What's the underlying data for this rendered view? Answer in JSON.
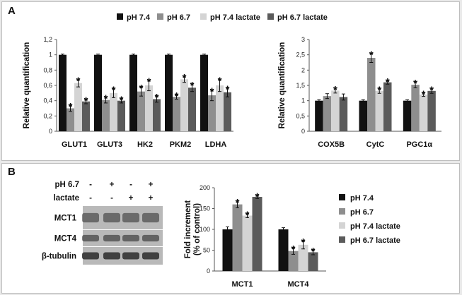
{
  "panel_labels": {
    "a": "A",
    "b": "B"
  },
  "colors": {
    "pH 7.4": "#111111",
    "pH 6.7": "#8e8e8e",
    "pH 7.4 lactate": "#d4d4d4",
    "pH 6.7 lactate": "#5b5b5b"
  },
  "legend_a": [
    "pH 7.4",
    "pH 6.7",
    "pH 7.4 lactate",
    "pH 6.7 lactate"
  ],
  "legend_b": [
    "pH 7.4",
    "pH 6.7",
    "pH 7.4 lactate",
    "pH 6.7 lactate"
  ],
  "blot": {
    "condition_rows": [
      {
        "label": "pH 6.7",
        "marks": [
          "-",
          "+",
          "-",
          "+"
        ]
      },
      {
        "label": "lactate",
        "marks": [
          "-",
          "-",
          "+",
          "+"
        ]
      }
    ],
    "protein_labels": [
      "MCT1",
      "MCT4",
      "β-tubulin"
    ]
  },
  "chart_data": [
    {
      "type": "bar",
      "ylabel": "Relative quantification",
      "ylim": [
        0,
        1.2
      ],
      "yticks": [
        "0",
        "0,2",
        "0,4",
        "0,6",
        "0,8",
        "1",
        "1,2"
      ],
      "categories": [
        "GLUT1",
        "GLUT3",
        "HK2",
        "PKM2",
        "LDHA"
      ],
      "series": [
        {
          "name": "pH 7.4",
          "values": [
            1.0,
            1.0,
            1.0,
            1.0,
            1.0
          ],
          "errors": [
            0.01,
            0.01,
            0.01,
            0.01,
            0.01
          ],
          "sig": [
            false,
            false,
            false,
            false,
            false
          ]
        },
        {
          "name": "pH 6.7",
          "values": [
            0.3,
            0.41,
            0.52,
            0.45,
            0.47
          ],
          "errors": [
            0.04,
            0.04,
            0.06,
            0.03,
            0.07
          ],
          "sig": [
            true,
            true,
            true,
            true,
            true
          ]
        },
        {
          "name": "pH 7.4 lactate",
          "values": [
            0.63,
            0.5,
            0.6,
            0.68,
            0.6
          ],
          "errors": [
            0.05,
            0.06,
            0.07,
            0.04,
            0.08
          ],
          "sig": [
            true,
            true,
            true,
            true,
            true
          ]
        },
        {
          "name": "pH 6.7 lactate",
          "values": [
            0.39,
            0.4,
            0.42,
            0.57,
            0.51
          ],
          "errors": [
            0.03,
            0.03,
            0.04,
            0.05,
            0.06
          ],
          "sig": [
            true,
            true,
            true,
            true,
            true
          ]
        }
      ]
    },
    {
      "type": "bar",
      "ylabel": "Relative quantification",
      "ylim": [
        0,
        3
      ],
      "yticks": [
        "0",
        "0,5",
        "1",
        "1,5",
        "2",
        "2,5",
        "3"
      ],
      "categories": [
        "COX5B",
        "CytC",
        "PGC1α"
      ],
      "series": [
        {
          "name": "pH 7.4",
          "values": [
            1.0,
            1.0,
            1.0
          ],
          "errors": [
            0.03,
            0.03,
            0.03
          ],
          "sig": [
            false,
            false,
            false
          ]
        },
        {
          "name": "pH 6.7",
          "values": [
            1.15,
            2.4,
            1.52
          ],
          "errors": [
            0.08,
            0.15,
            0.1
          ],
          "sig": [
            false,
            true,
            true
          ]
        },
        {
          "name": "pH 7.4 lactate",
          "values": [
            1.33,
            1.32,
            1.2
          ],
          "errors": [
            0.08,
            0.08,
            0.06
          ],
          "sig": [
            true,
            true,
            true
          ]
        },
        {
          "name": "pH 6.7 lactate",
          "values": [
            1.12,
            1.6,
            1.32
          ],
          "errors": [
            0.1,
            0.06,
            0.08
          ],
          "sig": [
            false,
            true,
            true
          ]
        }
      ]
    },
    {
      "type": "bar",
      "ylabel": "Fold increment (% of control)",
      "ylim": [
        0,
        200
      ],
      "yticks": [
        "0",
        "50",
        "100",
        "150",
        "200"
      ],
      "categories": [
        "MCT1",
        "MCT4"
      ],
      "series": [
        {
          "name": "pH 7.4",
          "values": [
            100,
            100
          ],
          "errors": [
            6,
            4
          ],
          "sig": [
            false,
            false
          ]
        },
        {
          "name": "pH 6.7",
          "values": [
            160,
            48
          ],
          "errors": [
            8,
            8
          ],
          "sig": [
            true,
            true
          ]
        },
        {
          "name": "pH 7.4 lactate",
          "values": [
            133,
            63
          ],
          "errors": [
            5,
            10
          ],
          "sig": [
            true,
            true
          ]
        },
        {
          "name": "pH 6.7 lactate",
          "values": [
            178,
            45
          ],
          "errors": [
            4,
            6
          ],
          "sig": [
            true,
            true
          ]
        }
      ]
    }
  ]
}
